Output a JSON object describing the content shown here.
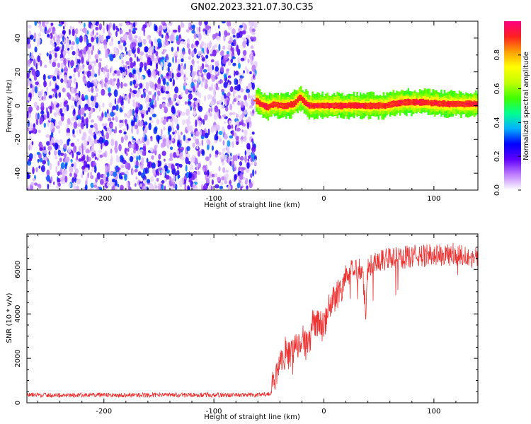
{
  "title": "GN02.2023.321.07.30.C35",
  "chart_data": [
    {
      "type": "heatmap",
      "title": "",
      "xlabel": "Height of straight line (km)",
      "ylabel": "Frequency (Hz)",
      "xlim": [
        -270,
        140
      ],
      "ylim": [
        -50,
        50
      ],
      "xticks": [
        "-200",
        "-100",
        "0",
        "100"
      ],
      "yticks": [
        "-40",
        "-20",
        "0",
        "20",
        "40"
      ],
      "grid": false,
      "description_regions": [
        {
          "x_range": [
            -270,
            -62
          ],
          "content": "broadband noise, normalized amplitude mostly 0.0-0.3"
        },
        {
          "x_range": [
            -62,
            140
          ],
          "content": "narrow signal band centered near 0 Hz, amplitude 0.5-1.0"
        }
      ],
      "signal_band": {
        "x": [
          -62,
          -58,
          -52,
          -46,
          -40,
          -34,
          -28,
          -22,
          -18,
          -14,
          -8,
          0,
          20,
          40,
          55,
          70,
          90,
          110,
          140
        ],
        "center_hz": [
          3,
          1,
          -1,
          1,
          0,
          0,
          1,
          5,
          2,
          0,
          0,
          0,
          0,
          0,
          0,
          2,
          2,
          1,
          1
        ]
      },
      "colorbar": {
        "label": "Normalized spectral amplitude",
        "range": [
          0,
          1
        ],
        "ticks": [
          "0.0",
          "0.2",
          "0.4",
          "0.6",
          "0.8"
        ],
        "colors": [
          "#ffffff",
          "#c080ff",
          "#6000ff",
          "#0000ff",
          "#00b0ff",
          "#00ff90",
          "#40ff00",
          "#c0ff00",
          "#ffff00",
          "#ffa000",
          "#ff2020",
          "#ff0080"
        ]
      }
    },
    {
      "type": "line",
      "title": "",
      "xlabel": "Height of straight line (km)",
      "ylabel": "SNR (10 * v/v)",
      "xlim": [
        -270,
        140
      ],
      "ylim": [
        0,
        7600
      ],
      "xticks": [
        "-200",
        "-100",
        "0",
        "100"
      ],
      "yticks": [
        "0",
        "2000",
        "4000",
        "6000"
      ],
      "grid": false,
      "color": "#ee3333",
      "series": [
        {
          "x": [
            -270,
            -200,
            -100,
            -60,
            -48,
            -45,
            -40,
            -35,
            -30,
            -25,
            -20,
            -15,
            -10,
            -5,
            0,
            5,
            10,
            15,
            20,
            25,
            30,
            35,
            38,
            40,
            45,
            50,
            60,
            70,
            80,
            90,
            100,
            110,
            120,
            130,
            140
          ],
          "values": [
            350,
            350,
            350,
            350,
            400,
            900,
            1600,
            2300,
            2100,
            2600,
            3100,
            2400,
            3500,
            3700,
            3300,
            4300,
            4800,
            5100,
            5600,
            5900,
            6000,
            6100,
            4000,
            6100,
            6300,
            6400,
            6500,
            6500,
            6600,
            6600,
            6700,
            6600,
            6700,
            6600,
            6500
          ]
        }
      ]
    }
  ]
}
